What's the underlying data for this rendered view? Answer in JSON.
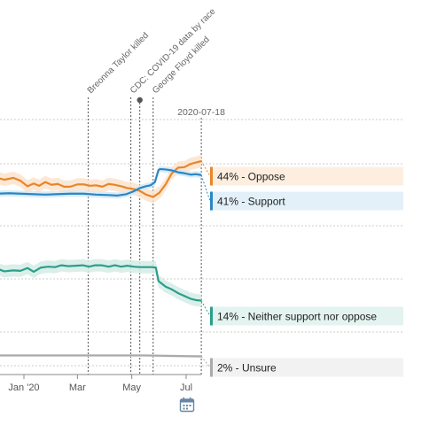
{
  "chart_data": {
    "type": "line",
    "x_ticks": [
      "Jan '20",
      "Mar",
      "May",
      "Jul"
    ],
    "current_date_label": "2020-07-18",
    "annotations": [
      {
        "label": "Breonna Taylor killed",
        "x": "2020-03-13"
      },
      {
        "label": "CDC: COVID-19 data by race",
        "x": "2020-04-30"
      },
      {
        "label": "",
        "x": "2020-05-10",
        "marker": true
      },
      {
        "label": "George Floyd killed",
        "x": "2020-05-25"
      }
    ],
    "series": [
      {
        "name": "Oppose",
        "end_label": "44% - Oppose",
        "color": "#e8862a",
        "band_color": "#fbe3cc",
        "label_bg": "#fdeee0",
        "last_value": 44,
        "points": [
          [
            "2019-11-20",
            40.0
          ],
          [
            "2019-12-01",
            40.5
          ],
          [
            "2019-12-10",
            40.0
          ],
          [
            "2019-12-20",
            40.4
          ],
          [
            "2019-12-28",
            39.8
          ],
          [
            "2020-01-05",
            38.6
          ],
          [
            "2020-01-12",
            39.2
          ],
          [
            "2020-01-18",
            38.7
          ],
          [
            "2020-01-25",
            39.5
          ],
          [
            "2020-02-01",
            38.9
          ],
          [
            "2020-02-08",
            39.1
          ],
          [
            "2020-02-15",
            38.5
          ],
          [
            "2020-02-22",
            38.5
          ],
          [
            "2020-03-01",
            39.0
          ],
          [
            "2020-03-08",
            39.0
          ],
          [
            "2020-03-15",
            38.7
          ],
          [
            "2020-03-22",
            38.8
          ],
          [
            "2020-03-29",
            38.5
          ],
          [
            "2020-04-05",
            39.1
          ],
          [
            "2020-04-12",
            38.9
          ],
          [
            "2020-04-19",
            38.6
          ],
          [
            "2020-04-26",
            38.2
          ],
          [
            "2020-05-03",
            38.0
          ],
          [
            "2020-05-10",
            37.6
          ],
          [
            "2020-05-17",
            36.8
          ],
          [
            "2020-05-25",
            36.3
          ],
          [
            "2020-06-01",
            37.2
          ],
          [
            "2020-06-08",
            39.0
          ],
          [
            "2020-06-15",
            41.4
          ],
          [
            "2020-06-22",
            42.6
          ],
          [
            "2020-06-29",
            42.7
          ],
          [
            "2020-07-06",
            43.4
          ],
          [
            "2020-07-12",
            43.7
          ],
          [
            "2020-07-18",
            44.0
          ]
        ]
      },
      {
        "name": "Support",
        "end_label": "41% - Support",
        "color": "#2a86c3",
        "band_color": "#d3e7f4",
        "label_bg": "#e3f0f9",
        "last_value": 41,
        "points": [
          [
            "2019-11-20",
            37.0
          ],
          [
            "2019-12-01",
            37.0
          ],
          [
            "2019-12-15",
            37.1
          ],
          [
            "2019-12-28",
            37.0
          ],
          [
            "2020-01-10",
            36.9
          ],
          [
            "2020-01-25",
            36.8
          ],
          [
            "2020-02-08",
            36.9
          ],
          [
            "2020-02-22",
            37.0
          ],
          [
            "2020-03-08",
            37.0
          ],
          [
            "2020-03-22",
            36.8
          ],
          [
            "2020-04-05",
            36.7
          ],
          [
            "2020-04-15",
            36.6
          ],
          [
            "2020-04-25",
            36.9
          ],
          [
            "2020-05-03",
            37.5
          ],
          [
            "2020-05-10",
            38.2
          ],
          [
            "2020-05-17",
            38.6
          ],
          [
            "2020-05-22",
            38.8
          ],
          [
            "2020-05-27",
            39.5
          ],
          [
            "2020-05-31",
            42.1
          ],
          [
            "2020-06-02",
            42.3
          ],
          [
            "2020-06-08",
            42.2
          ],
          [
            "2020-06-15",
            42.0
          ],
          [
            "2020-06-22",
            41.6
          ],
          [
            "2020-06-29",
            41.4
          ],
          [
            "2020-07-06",
            41.1
          ],
          [
            "2020-07-12",
            41.2
          ],
          [
            "2020-07-18",
            41.0
          ]
        ]
      },
      {
        "name": "Neither support nor oppose",
        "end_label": "14% - Neither support nor oppose",
        "color": "#2c9e8a",
        "band_color": "#d5ece6",
        "label_bg": "#e3f3ef",
        "last_value": 14,
        "points": [
          [
            "2019-11-20",
            21.0
          ],
          [
            "2019-12-01",
            20.9
          ],
          [
            "2019-12-10",
            20.3
          ],
          [
            "2019-12-20",
            20.5
          ],
          [
            "2019-12-28",
            20.4
          ],
          [
            "2020-01-05",
            21.0
          ],
          [
            "2020-01-12",
            20.2
          ],
          [
            "2020-01-20",
            21.1
          ],
          [
            "2020-01-28",
            21.3
          ],
          [
            "2020-02-05",
            21.2
          ],
          [
            "2020-02-12",
            21.6
          ],
          [
            "2020-02-20",
            21.4
          ],
          [
            "2020-02-28",
            21.5
          ],
          [
            "2020-03-07",
            21.6
          ],
          [
            "2020-03-14",
            21.3
          ],
          [
            "2020-03-21",
            21.6
          ],
          [
            "2020-03-28",
            21.6
          ],
          [
            "2020-04-05",
            21.3
          ],
          [
            "2020-04-12",
            21.6
          ],
          [
            "2020-04-19",
            21.3
          ],
          [
            "2020-04-26",
            21.5
          ],
          [
            "2020-05-03",
            21.3
          ],
          [
            "2020-05-10",
            21.2
          ],
          [
            "2020-05-17",
            21.2
          ],
          [
            "2020-05-24",
            21.2
          ],
          [
            "2020-05-28",
            21.1
          ],
          [
            "2020-05-31",
            18.2
          ],
          [
            "2020-06-08",
            17.0
          ],
          [
            "2020-06-15",
            16.4
          ],
          [
            "2020-06-22",
            15.6
          ],
          [
            "2020-06-29",
            15.0
          ],
          [
            "2020-07-06",
            14.4
          ],
          [
            "2020-07-12",
            14.1
          ],
          [
            "2020-07-18",
            14.0
          ]
        ]
      },
      {
        "name": "Unsure",
        "end_label": "2% - Unsure",
        "color": "#aaaaaa",
        "band_color": "#eeeeee",
        "label_bg": "#f2f2f2",
        "last_value": 2,
        "points": [
          [
            "2019-11-20",
            2.2
          ],
          [
            "2020-01-15",
            2.2
          ],
          [
            "2020-03-15",
            2.2
          ],
          [
            "2020-05-15",
            2.2
          ],
          [
            "2020-06-15",
            2.1
          ],
          [
            "2020-07-18",
            2.0
          ]
        ]
      }
    ],
    "icon": "calendar-icon"
  }
}
